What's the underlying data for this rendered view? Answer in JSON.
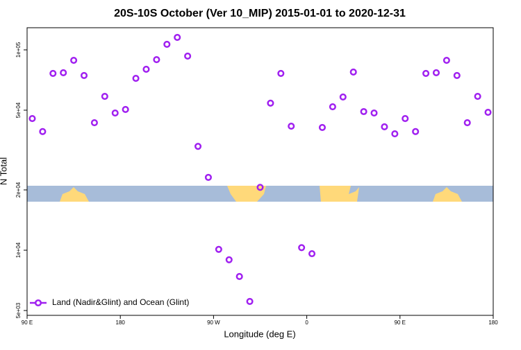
{
  "chart_data": {
    "type": "scatter",
    "title": "20S-10S October (Ver 10_MIP)   2015-01-01 to 2020-12-31",
    "x_label": "Longitude (deg E)",
    "y_label": "N Total",
    "y_log": true,
    "xlim": [
      90,
      540
    ],
    "xticks": [
      {
        "value": 90,
        "label": "90 E"
      },
      {
        "value": 180,
        "label": "180"
      },
      {
        "value": 270,
        "label": "90 W"
      },
      {
        "value": 360,
        "label": "0"
      },
      {
        "value": 450,
        "label": "90 E"
      },
      {
        "value": 540,
        "label": "180"
      }
    ],
    "ylim": [
      4730,
      129000
    ],
    "yticks": [
      {
        "value": 5000,
        "label": "5e+03"
      },
      {
        "value": 10000,
        "label": "1e+04"
      },
      {
        "value": 20000,
        "label": "2e+04"
      },
      {
        "value": 50000,
        "label": "5e+04"
      },
      {
        "value": 100000,
        "label": "1e+05"
      }
    ],
    "legend_position": "bottom-left",
    "series": [
      {
        "name": "Land (Nadir&Glint) and Ocean (Glint)",
        "color": "#a020f0",
        "x": [
          95,
          105,
          115,
          125,
          135,
          145,
          155,
          165,
          175,
          185,
          195,
          205,
          215,
          225,
          235,
          245,
          255,
          265,
          275,
          285,
          295,
          305,
          315,
          325,
          335,
          345,
          355,
          365,
          375,
          385,
          395,
          405,
          415,
          425,
          435,
          445,
          455,
          465,
          475,
          485,
          495,
          505,
          515,
          525,
          535
        ],
        "values": [
          45400,
          39100,
          76300,
          76900,
          88700,
          74500,
          43300,
          58600,
          48400,
          50400,
          72100,
          80000,
          89400,
          106600,
          115400,
          93100,
          33000,
          23100,
          10100,
          8960,
          7390,
          5550,
          20600,
          54200,
          76300,
          41600,
          10300,
          9610,
          41000,
          52000,
          58200,
          77500,
          49200,
          48400,
          41300,
          38100,
          45400,
          39100,
          76300,
          76900,
          88700,
          74500,
          43300,
          58600,
          48800
        ]
      }
    ]
  }
}
